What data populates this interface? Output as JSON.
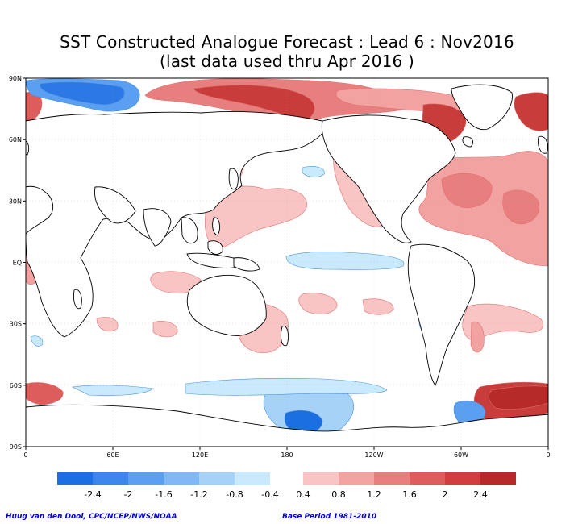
{
  "title_line1": "SST Constructed Analogue Forecast : Lead 6 : Nov2016",
  "title_line2": "(last data used thru Apr 2016 )",
  "lat_labels": [
    "90N",
    "60N",
    "30N",
    "EQ",
    "30S",
    "60S",
    "90S"
  ],
  "lat_values": [
    90,
    60,
    30,
    0,
    -30,
    -60,
    -90
  ],
  "lon_labels": [
    "0",
    "60E",
    "120E",
    "180",
    "120W",
    "60W",
    "0"
  ],
  "lon_values": [
    0,
    60,
    120,
    180,
    240,
    300,
    360
  ],
  "colorbar": {
    "neg_labels": [
      "-2.4",
      "-2",
      "-1.6",
      "-1.2",
      "-0.8",
      "-0.4"
    ],
    "pos_labels": [
      "0.4",
      "0.8",
      "1.2",
      "1.6",
      "2",
      "2.4"
    ],
    "neg_colors": [
      "#1c6fe0",
      "#3a86ea",
      "#5b9ff0",
      "#7fb8f4",
      "#a6d2f8",
      "#c8eafc"
    ],
    "pos_colors": [
      "#f9c4c4",
      "#f3a2a2",
      "#e87f7f",
      "#dd5c5c",
      "#cf3e3e",
      "#b62a2a"
    ]
  },
  "footer_credit": "Huug van den Dool, CPC/NCEP/NWS/NOAA",
  "footer_base_period": "Base Period 1981-2010",
  "chart_data": {
    "type": "heatmap",
    "variable": "SST anomaly",
    "xlabel": "",
    "ylabel": "",
    "xlim": [
      0,
      360
    ],
    "ylim": [
      -90,
      90
    ],
    "anomalies": [
      {
        "lon": 140,
        "lat": 84,
        "value": 2.0
      },
      {
        "lon": 168,
        "lat": 78,
        "value": 2.4
      },
      {
        "lon": 235,
        "lat": 80,
        "value": 1.2
      },
      {
        "lon": 318,
        "lat": 68,
        "value": 2.4
      },
      {
        "lon": 350,
        "lat": 74,
        "value": 2.0
      },
      {
        "lon": 2,
        "lat": 74,
        "value": 1.6
      },
      {
        "lon": 298,
        "lat": 35,
        "value": 1.6
      },
      {
        "lon": 335,
        "lat": 25,
        "value": 1.2
      },
      {
        "lon": 140,
        "lat": 25,
        "value": 0.4
      },
      {
        "lon": 165,
        "lat": -35,
        "value": 0.8
      },
      {
        "lon": 320,
        "lat": -40,
        "value": 0.8
      },
      {
        "lon": 330,
        "lat": -65,
        "value": 2.4
      },
      {
        "lon": 5,
        "lat": -63,
        "value": 2.0
      },
      {
        "lon": 170,
        "lat": 6,
        "value": 0.4
      },
      {
        "lon": 210,
        "lat": 5,
        "value": -0.4
      },
      {
        "lon": 60,
        "lat": 88,
        "value": -1.6
      },
      {
        "lon": 30,
        "lat": 80,
        "value": -2.4
      },
      {
        "lon": 195,
        "lat": -73,
        "value": -2.4
      },
      {
        "lon": 290,
        "lat": -70,
        "value": -2.4
      },
      {
        "lon": 205,
        "lat": -38,
        "value": -0.4
      },
      {
        "lon": 10,
        "lat": -42,
        "value": -0.4
      }
    ]
  }
}
